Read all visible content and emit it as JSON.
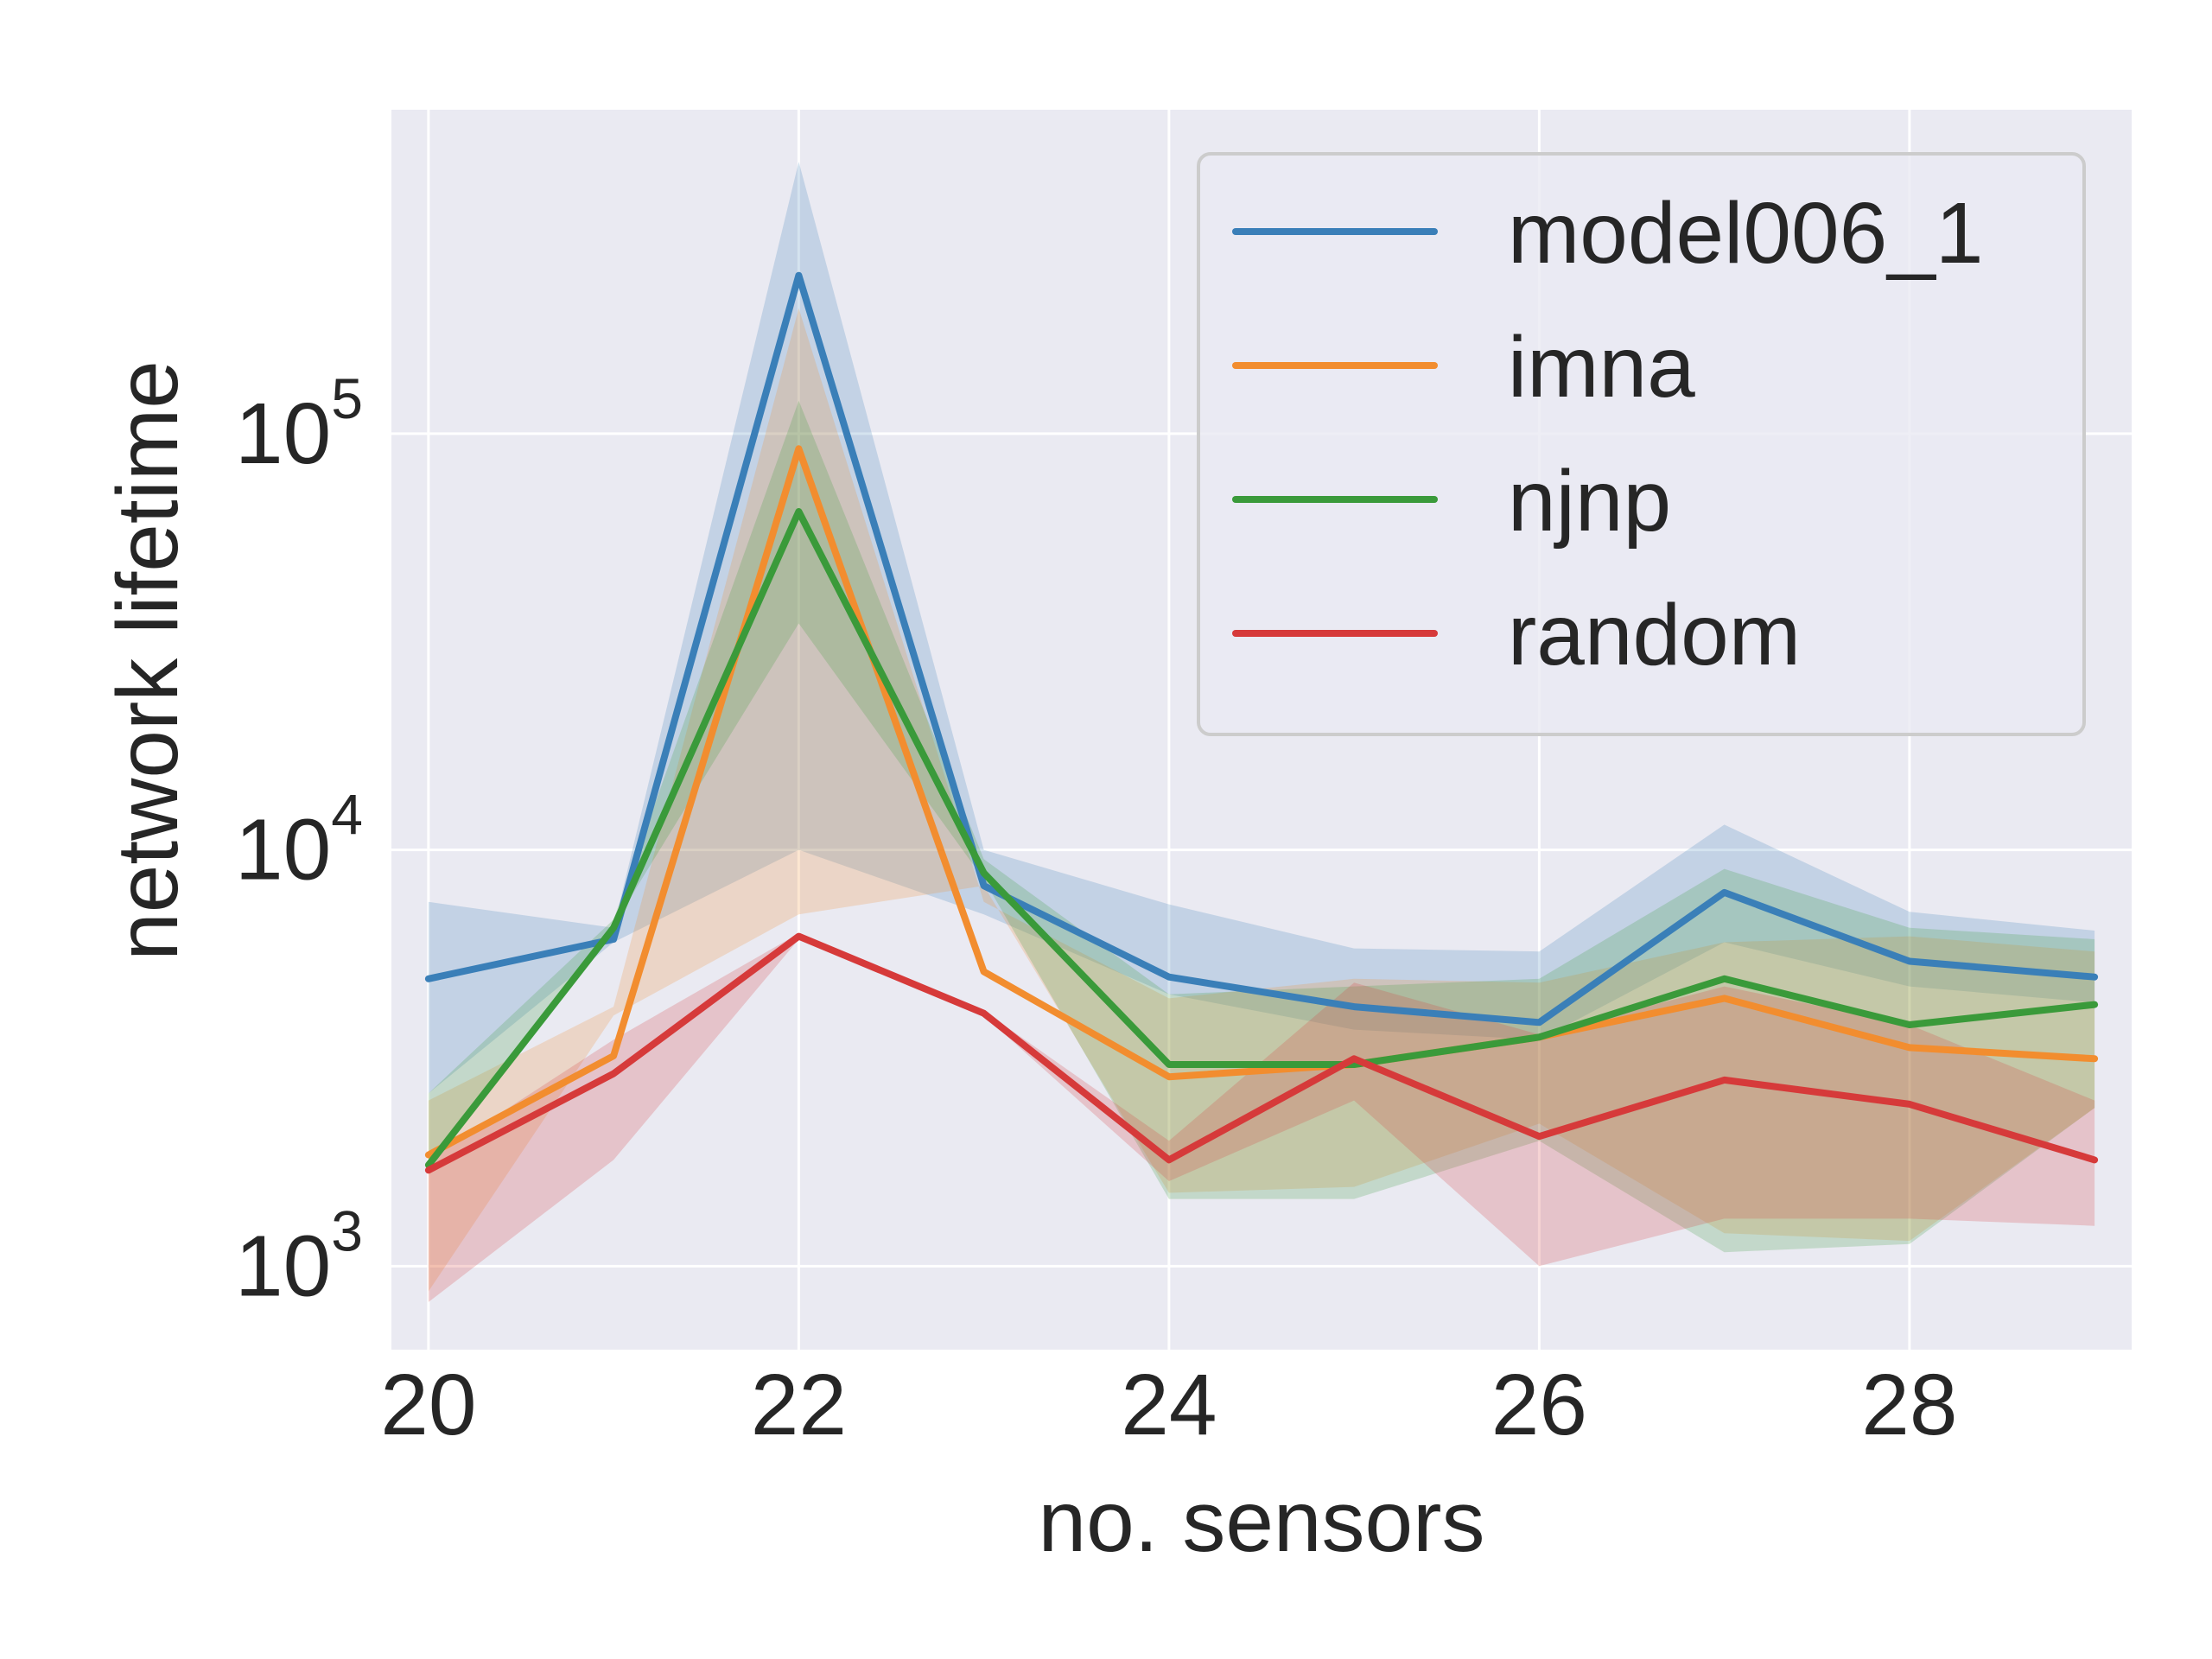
{
  "chart_data": {
    "type": "line",
    "xlabel": "no. sensors",
    "ylabel": "network lifetime",
    "yscale": "log",
    "xlim": [
      19.8,
      29.2
    ],
    "ylim": [
      630,
      600000
    ],
    "x": [
      20,
      21,
      22,
      23,
      24,
      25,
      26,
      27,
      28,
      29
    ],
    "x_ticks": [
      20,
      22,
      24,
      26,
      28
    ],
    "x_tick_labels": [
      "20",
      "22",
      "24",
      "26",
      "28"
    ],
    "y_ticks": [
      {
        "value": 1000,
        "base": "10",
        "exp": "3"
      },
      {
        "value": 10000,
        "base": "10",
        "exp": "4"
      },
      {
        "value": 100000,
        "base": "10",
        "exp": "5"
      }
    ],
    "grid": true,
    "legend_position": "top-right",
    "background_color": "#eaeaf2",
    "grid_color": "#ffffff",
    "series": [
      {
        "name": "model006_1",
        "color": "#3a7fb8",
        "values": [
          4900,
          6100,
          240000,
          8200,
          4950,
          4200,
          3850,
          7900,
          5400,
          4950
        ],
        "band_low": [
          2600,
          6000,
          10000,
          7000,
          4500,
          3700,
          3500,
          6000,
          4700,
          4300
        ],
        "band_high": [
          7500,
          6500,
          450000,
          10000,
          7400,
          5800,
          5700,
          11500,
          7100,
          6400
        ]
      },
      {
        "name": "imna",
        "color": "#f28d2f",
        "values": [
          1850,
          3200,
          92000,
          5100,
          2850,
          3050,
          3550,
          4400,
          3350,
          3150
        ],
        "band_low": [
          870,
          4000,
          7000,
          8200,
          1500,
          1550,
          2200,
          1200,
          1150,
          2400
        ],
        "band_high": [
          2500,
          4200,
          200000,
          7500,
          4400,
          4900,
          4800,
          6000,
          6200,
          5700
        ]
      },
      {
        "name": "njnp",
        "color": "#3a9a3a",
        "values": [
          1750,
          6500,
          65000,
          8800,
          3050,
          3050,
          3550,
          4900,
          3800,
          4250
        ],
        "band_low": [
          1700,
          6600,
          35000,
          8500,
          1450,
          1450,
          2000,
          1080,
          1130,
          2400
        ],
        "band_high": [
          2600,
          6800,
          120000,
          9500,
          4500,
          4700,
          4900,
          9000,
          6500,
          6100
        ]
      },
      {
        "name": "random",
        "color": "#d63a3a",
        "values": [
          1700,
          2900,
          6200,
          4050,
          1800,
          3150,
          2050,
          2800,
          2450,
          1800
        ],
        "band_low": [
          820,
          1800,
          6100,
          4000,
          1600,
          2500,
          1000,
          1300,
          1300,
          1250
        ],
        "band_high": [
          1800,
          3500,
          6300,
          4100,
          2000,
          4800,
          3600,
          4700,
          3800,
          2500
        ]
      }
    ]
  }
}
